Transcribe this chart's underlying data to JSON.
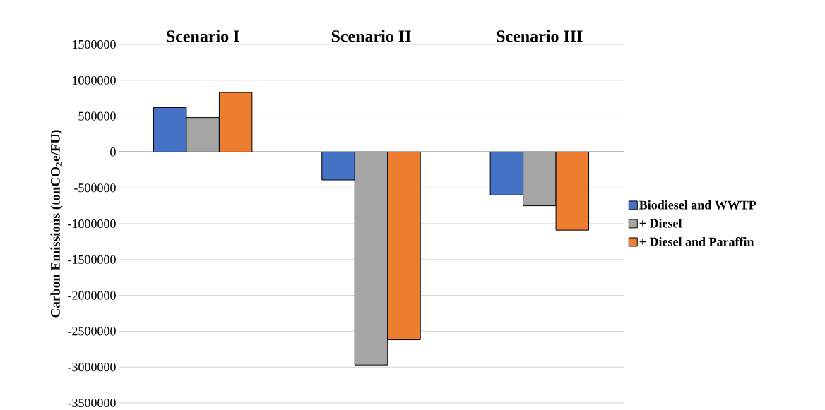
{
  "chart_data": {
    "type": "bar",
    "categories": [
      "Scenario I",
      "Scenario II",
      "Scenario III"
    ],
    "ylabel": "Carbon Emissions (tonCO$_{2}$e/FU)",
    "series": [
      {
        "name": "Biodiesel and WWTP",
        "color": "#4472c4",
        "values": [
          620000,
          -390000,
          -600000
        ]
      },
      {
        "name": "+ Diesel",
        "color": "#a5a5a5",
        "values": [
          480000,
          -2970000,
          -750000
        ]
      },
      {
        "name": "+ Diesel and Paraffin",
        "color": "#ed7d31",
        "values": [
          830000,
          -2620000,
          -1090000
        ]
      }
    ],
    "ylim": [
      -3500000,
      1500000
    ],
    "yticks": [
      -3500000,
      -3000000,
      -2500000,
      -2000000,
      -1500000,
      -1000000,
      -500000,
      0,
      500000,
      1000000,
      1500000
    ],
    "grid": "y",
    "legend": "right"
  }
}
